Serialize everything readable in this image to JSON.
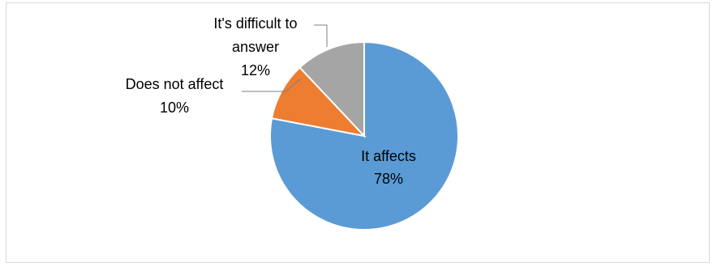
{
  "chart_data": {
    "type": "pie",
    "title": "",
    "start_angle_deg": 0,
    "direction": "clockwise",
    "legend": "none",
    "slices": [
      {
        "label": "It affects",
        "value": 78,
        "percent_label": "78%",
        "color": "#5b9bd5"
      },
      {
        "label": "Does not affect",
        "value": 10,
        "percent_label": "10%",
        "color": "#ed7d31"
      },
      {
        "label": "It's difficult to answer",
        "label_lines": [
          "It's difficult to",
          "answer"
        ],
        "value": 12,
        "percent_label": "12%",
        "color": "#a5a5a5"
      }
    ]
  }
}
